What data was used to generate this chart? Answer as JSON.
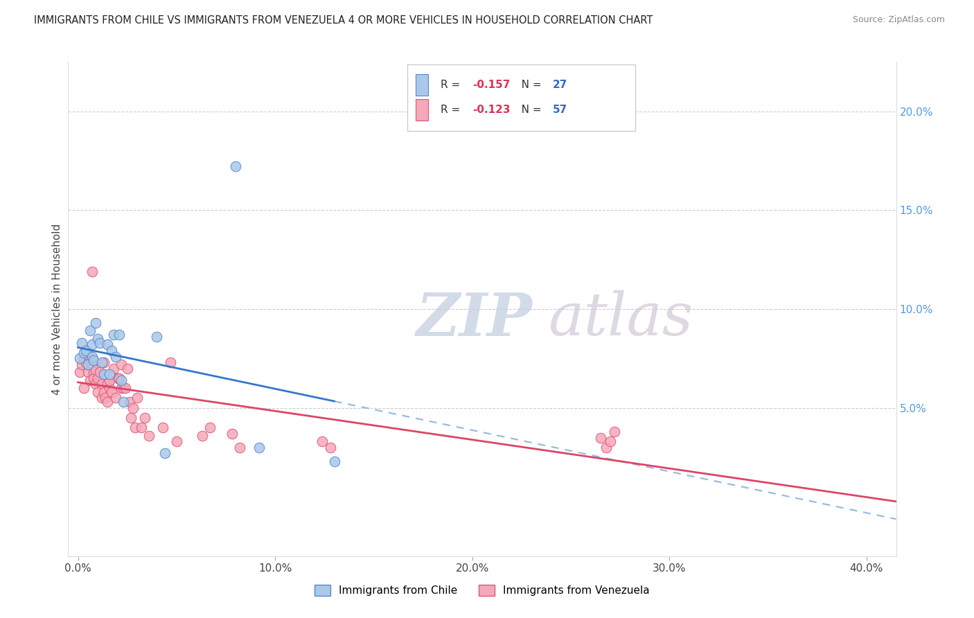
{
  "title": "IMMIGRANTS FROM CHILE VS IMMIGRANTS FROM VENEZUELA 4 OR MORE VEHICLES IN HOUSEHOLD CORRELATION CHART",
  "source": "Source: ZipAtlas.com",
  "ylabel": "4 or more Vehicles in Household",
  "xlabel_ticks": [
    "0.0%",
    "10.0%",
    "20.0%",
    "30.0%",
    "40.0%"
  ],
  "xlabel_vals": [
    0.0,
    0.1,
    0.2,
    0.3,
    0.4
  ],
  "ylabel_ticks_right": [
    "20.0%",
    "15.0%",
    "10.0%",
    "5.0%"
  ],
  "ylabel_vals_right": [
    0.2,
    0.15,
    0.1,
    0.05
  ],
  "xlim": [
    -0.005,
    0.415
  ],
  "ylim": [
    -0.025,
    0.225
  ],
  "chile_color": "#aac8e8",
  "venezuela_color": "#f5a8b8",
  "chile_edge": "#5588cc",
  "venezuela_edge": "#dd5577",
  "trend_chile_color": "#3377cc",
  "trend_venezuela_color": "#dd4466",
  "trend_chile_dashed_color": "#99bbdd",
  "R_chile": -0.157,
  "N_chile": 27,
  "R_venezuela": -0.123,
  "N_venezuela": 57,
  "chile_x": [
    0.001,
    0.002,
    0.003,
    0.004,
    0.005,
    0.006,
    0.007,
    0.007,
    0.008,
    0.009,
    0.01,
    0.011,
    0.012,
    0.013,
    0.015,
    0.016,
    0.017,
    0.018,
    0.019,
    0.021,
    0.022,
    0.023,
    0.04,
    0.044,
    0.08,
    0.092,
    0.13
  ],
  "chile_y": [
    0.075,
    0.083,
    0.078,
    0.079,
    0.072,
    0.089,
    0.082,
    0.076,
    0.074,
    0.093,
    0.085,
    0.083,
    0.073,
    0.067,
    0.082,
    0.067,
    0.079,
    0.087,
    0.076,
    0.087,
    0.064,
    0.053,
    0.086,
    0.027,
    0.172,
    0.03,
    0.023
  ],
  "venezuela_x": [
    0.001,
    0.002,
    0.003,
    0.003,
    0.004,
    0.005,
    0.005,
    0.006,
    0.007,
    0.007,
    0.008,
    0.008,
    0.009,
    0.009,
    0.01,
    0.01,
    0.011,
    0.012,
    0.012,
    0.013,
    0.013,
    0.014,
    0.015,
    0.015,
    0.016,
    0.016,
    0.017,
    0.018,
    0.019,
    0.02,
    0.021,
    0.022,
    0.022,
    0.023,
    0.024,
    0.025,
    0.026,
    0.027,
    0.028,
    0.029,
    0.03,
    0.032,
    0.034,
    0.036,
    0.043,
    0.047,
    0.05,
    0.063,
    0.067,
    0.078,
    0.082,
    0.124,
    0.128,
    0.265,
    0.268,
    0.27,
    0.272
  ],
  "venezuela_y": [
    0.068,
    0.072,
    0.06,
    0.075,
    0.073,
    0.068,
    0.077,
    0.064,
    0.072,
    0.119,
    0.068,
    0.065,
    0.062,
    0.069,
    0.065,
    0.058,
    0.068,
    0.062,
    0.055,
    0.058,
    0.073,
    0.055,
    0.062,
    0.053,
    0.06,
    0.064,
    0.058,
    0.07,
    0.055,
    0.065,
    0.065,
    0.06,
    0.072,
    0.06,
    0.06,
    0.07,
    0.053,
    0.045,
    0.05,
    0.04,
    0.055,
    0.04,
    0.045,
    0.036,
    0.04,
    0.073,
    0.033,
    0.036,
    0.04,
    0.037,
    0.03,
    0.033,
    0.03,
    0.035,
    0.03,
    0.033,
    0.038
  ],
  "background_color": "#ffffff",
  "grid_color": "#cccccc",
  "watermark_zip": "ZIP",
  "watermark_atlas": "atlas",
  "watermark_color_zip": "#c8d8ee",
  "watermark_color_atlas": "#c8d8ee"
}
